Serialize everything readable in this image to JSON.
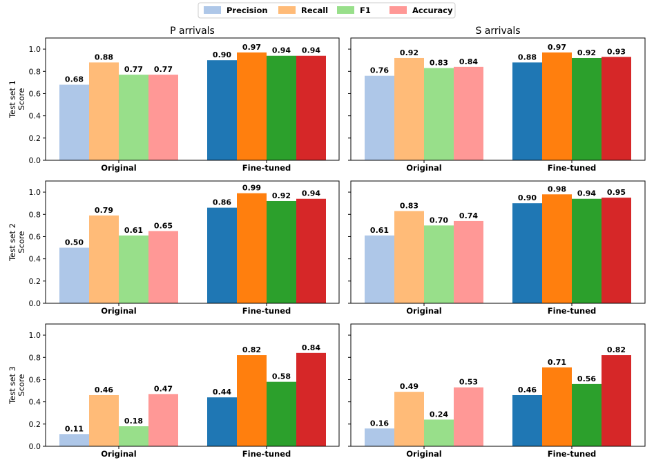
{
  "chart_data": {
    "type": "bar",
    "legend": {
      "placement": "top-center",
      "entries": [
        "Precision",
        "Recall",
        "F1",
        "Accuracy"
      ]
    },
    "metrics": [
      "Precision",
      "Recall",
      "F1",
      "Accuracy"
    ],
    "groups": [
      "Original",
      "Fine-tuned"
    ],
    "colors": {
      "Original": [
        "#aec7e8",
        "#ffbb78",
        "#98df8a",
        "#ff9896"
      ],
      "Fine-tuned": [
        "#1f77b4",
        "#ff7f0e",
        "#2ca02c",
        "#d62728"
      ]
    },
    "column_titles": [
      "P arrivals",
      "S arrivals"
    ],
    "row_labels": [
      "Test set 1",
      "Test set 2",
      "Test set 3"
    ],
    "ylabel": "Score",
    "ylim": [
      0,
      1.1
    ],
    "yticks": [
      "0.0",
      "0.2",
      "0.4",
      "0.6",
      "0.8",
      "1.0"
    ],
    "panels": [
      {
        "row": 0,
        "col": 0,
        "series": {
          "Original": [
            0.68,
            0.88,
            0.77,
            0.77
          ],
          "Fine-tuned": [
            0.9,
            0.97,
            0.94,
            0.94
          ]
        }
      },
      {
        "row": 0,
        "col": 1,
        "series": {
          "Original": [
            0.76,
            0.92,
            0.83,
            0.84
          ],
          "Fine-tuned": [
            0.88,
            0.97,
            0.92,
            0.93
          ]
        }
      },
      {
        "row": 1,
        "col": 0,
        "series": {
          "Original": [
            0.5,
            0.79,
            0.61,
            0.65
          ],
          "Fine-tuned": [
            0.86,
            0.99,
            0.92,
            0.94
          ]
        }
      },
      {
        "row": 1,
        "col": 1,
        "series": {
          "Original": [
            0.61,
            0.83,
            0.7,
            0.74
          ],
          "Fine-tuned": [
            0.9,
            0.98,
            0.94,
            0.95
          ]
        }
      },
      {
        "row": 2,
        "col": 0,
        "series": {
          "Original": [
            0.11,
            0.46,
            0.18,
            0.47
          ],
          "Fine-tuned": [
            0.44,
            0.82,
            0.58,
            0.84
          ]
        }
      },
      {
        "row": 2,
        "col": 1,
        "series": {
          "Original": [
            0.16,
            0.49,
            0.24,
            0.53
          ],
          "Fine-tuned": [
            0.46,
            0.71,
            0.56,
            0.82
          ]
        }
      }
    ]
  }
}
